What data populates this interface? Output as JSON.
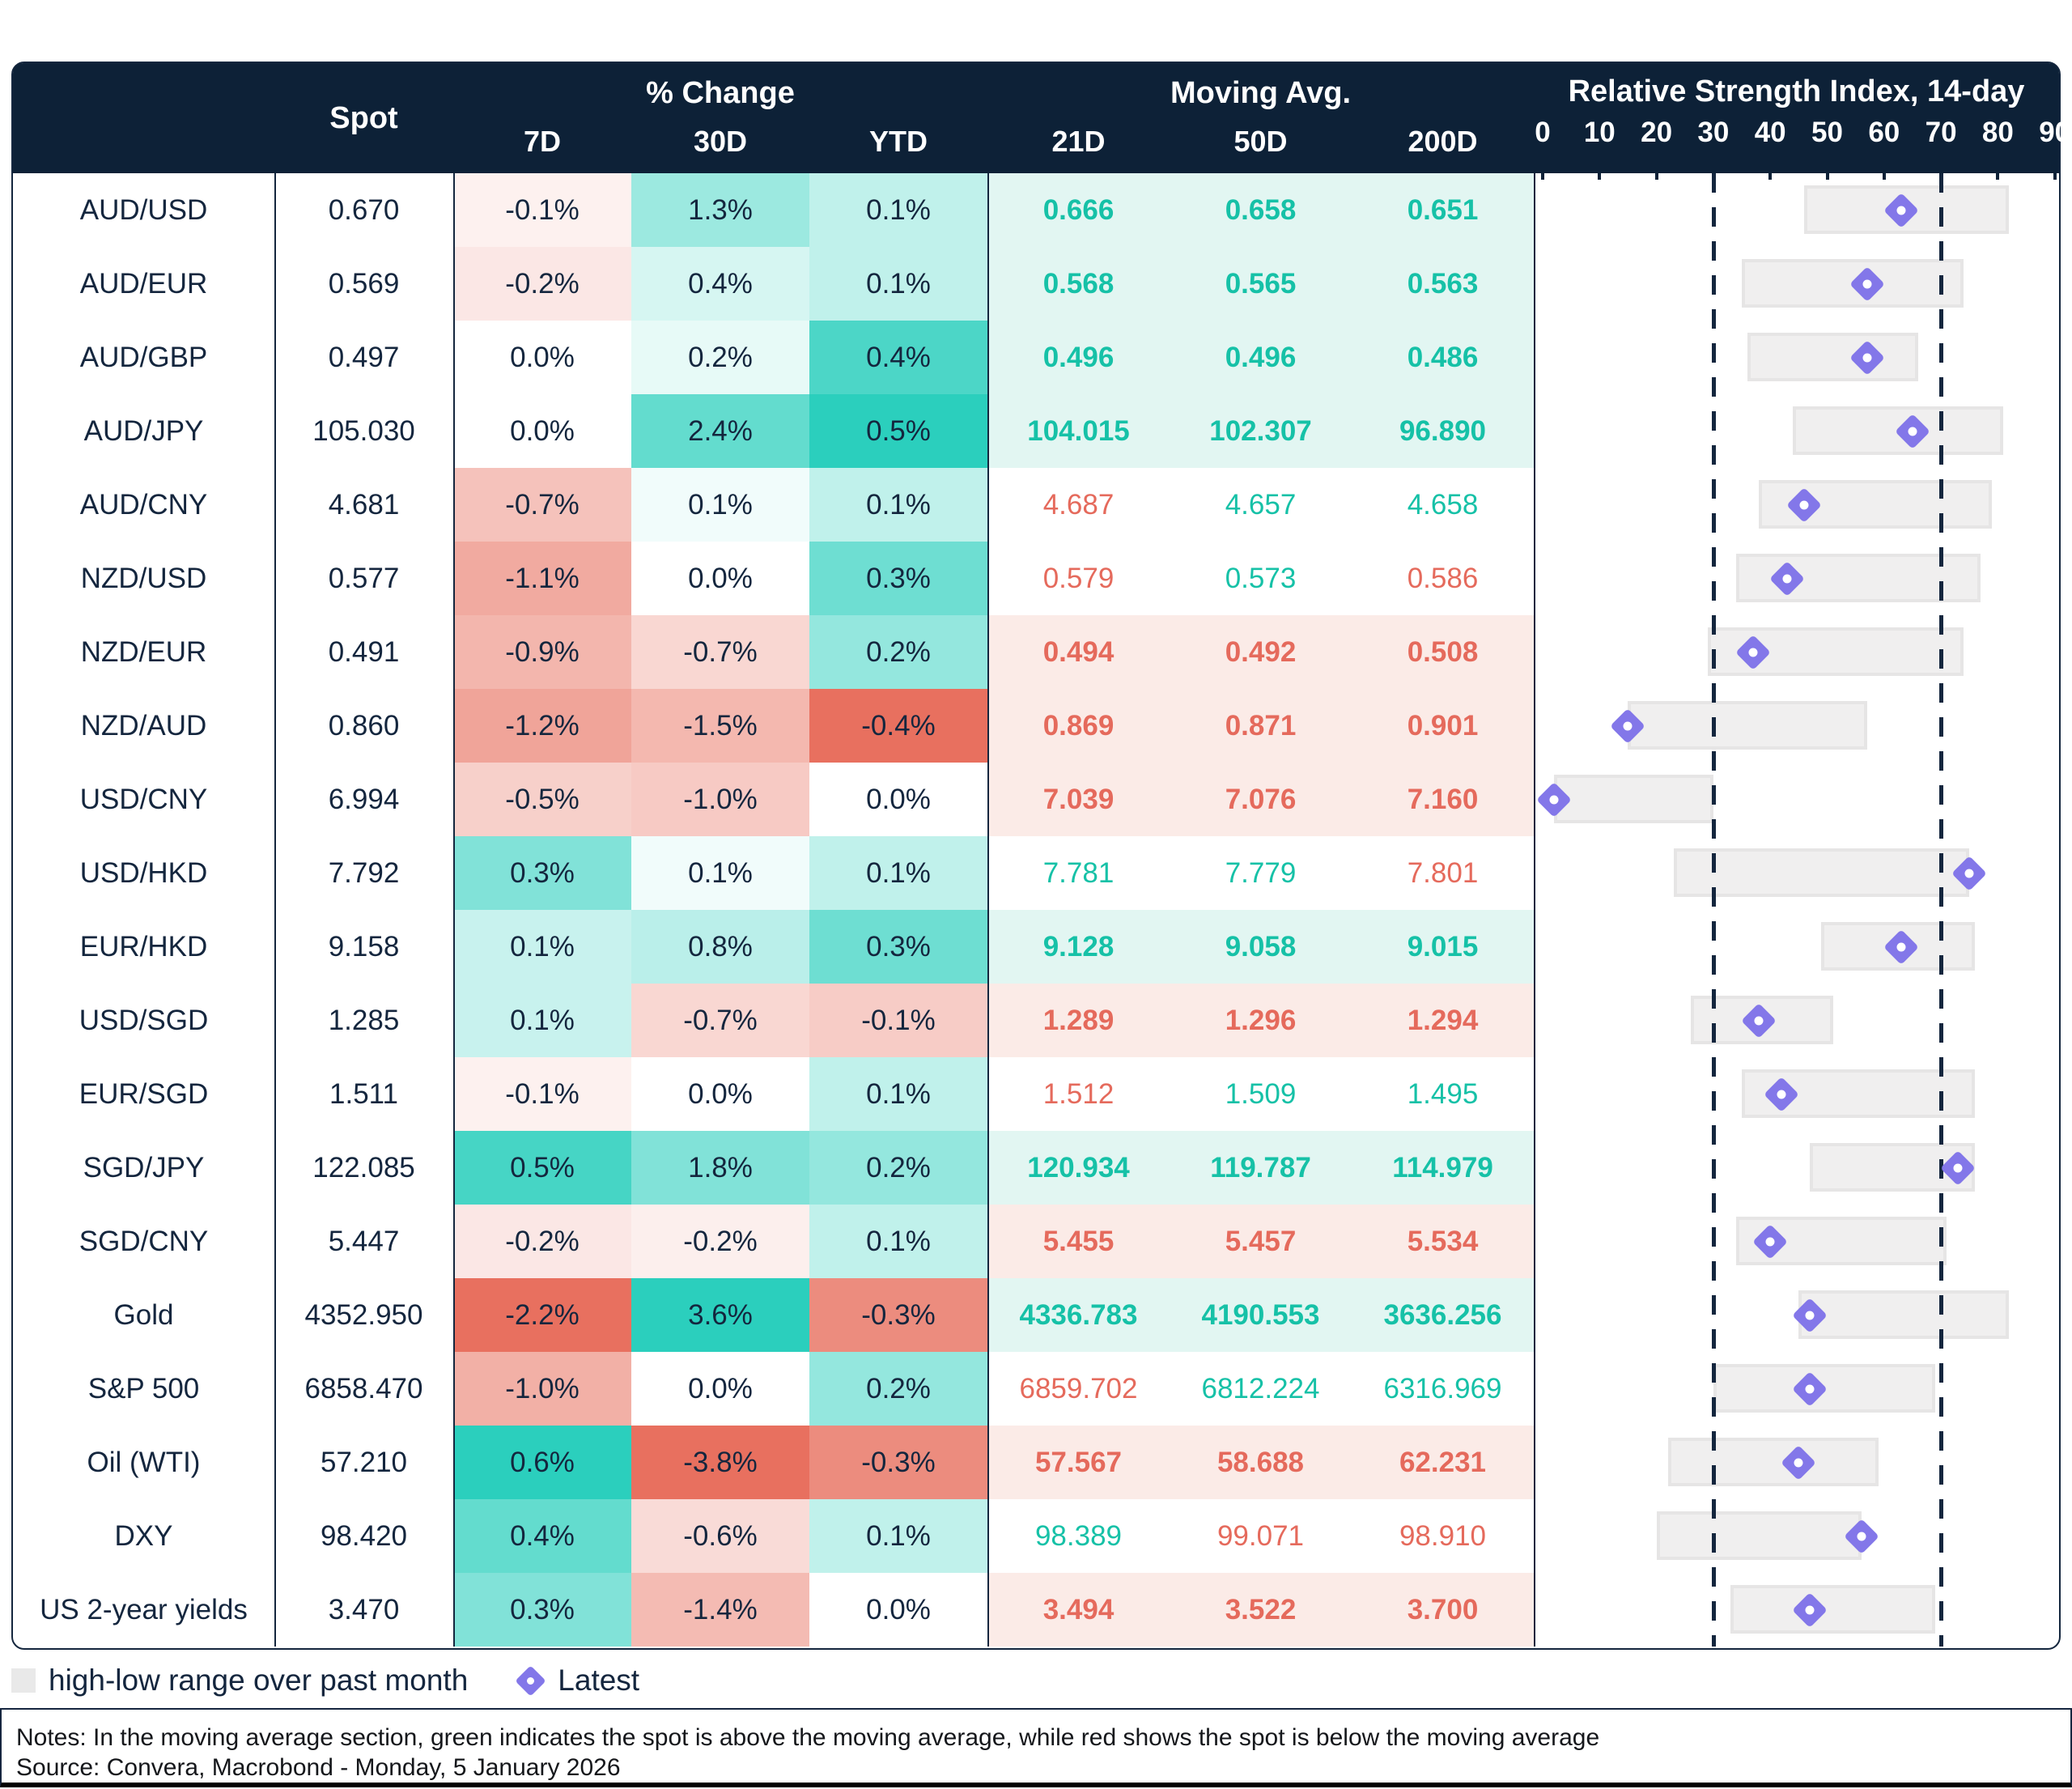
{
  "header": {
    "spot": "Spot",
    "pct_change": "% Change",
    "pct_sub": [
      "7D",
      "30D",
      "YTD"
    ],
    "moving_avg": "Moving Avg.",
    "ma_sub": [
      "21D",
      "50D",
      "200D"
    ],
    "rsi_title": "Relative Strength Index, 14-day",
    "rsi_axis": [
      0,
      10,
      20,
      30,
      40,
      50,
      60,
      70,
      80,
      90
    ]
  },
  "legend": {
    "range_label": "high-low range over past month",
    "latest_label": "Latest"
  },
  "notes": "Notes: In the moving average section, green indicates the spot is above the moving average, while red shows the spot is below the moving average",
  "source": "Source: Convera, Macrobond - Monday, 5 January 2026",
  "colors": {
    "header_bg": "#0D2137",
    "navy_text": "#14263E",
    "teal_full": "#2BCFBD",
    "red_full": "#E8705F",
    "ma_green_text": "#16C1A7",
    "ma_red_text": "#E56A5C",
    "ma_green_bg": "#E2F6F2",
    "ma_red_bg": "#FBEBE7",
    "bar_bg": "#F0EFEF",
    "bar_border": "#E6E5E5",
    "diamond_purple": "#8377E9"
  },
  "chart_data": {
    "type": "table",
    "rsi_axis_range": [
      0,
      90
    ],
    "rsi_oversold_line": 30,
    "rsi_overbought_line": 70,
    "pct_columns": [
      "7d",
      "30d",
      "ytd"
    ],
    "rows": [
      {
        "label": "AUD/USD",
        "spot": "0.670",
        "pct": {
          "7d": -0.1,
          "30d": 1.3,
          "ytd": 0.1
        },
        "ma": {
          "21d": "0.666",
          "50d": "0.658",
          "200d": "0.651",
          "status": "above",
          "cell_colors": [
            "green",
            "green",
            "green"
          ]
        },
        "rsi": {
          "low": 46,
          "high": 82,
          "latest": 63
        }
      },
      {
        "label": "AUD/EUR",
        "spot": "0.569",
        "pct": {
          "7d": -0.2,
          "30d": 0.4,
          "ytd": 0.1
        },
        "ma": {
          "21d": "0.568",
          "50d": "0.565",
          "200d": "0.563",
          "status": "above",
          "cell_colors": [
            "green",
            "green",
            "green"
          ]
        },
        "rsi": {
          "low": 35,
          "high": 74,
          "latest": 57
        }
      },
      {
        "label": "AUD/GBP",
        "spot": "0.497",
        "pct": {
          "7d": 0.0,
          "30d": 0.2,
          "ytd": 0.4
        },
        "ma": {
          "21d": "0.496",
          "50d": "0.496",
          "200d": "0.486",
          "status": "above",
          "cell_colors": [
            "green",
            "green",
            "green"
          ]
        },
        "rsi": {
          "low": 36,
          "high": 66,
          "latest": 57
        }
      },
      {
        "label": "AUD/JPY",
        "spot": "105.030",
        "pct": {
          "7d": 0.0,
          "30d": 2.4,
          "ytd": 0.5
        },
        "ma": {
          "21d": "104.015",
          "50d": "102.307",
          "200d": "96.890",
          "status": "above",
          "cell_colors": [
            "green",
            "green",
            "green"
          ]
        },
        "rsi": {
          "low": 44,
          "high": 81,
          "latest": 65
        }
      },
      {
        "label": "AUD/CNY",
        "spot": "4.681",
        "pct": {
          "7d": -0.7,
          "30d": 0.1,
          "ytd": 0.1
        },
        "ma": {
          "21d": "4.687",
          "50d": "4.657",
          "200d": "4.658",
          "status": "mixed",
          "cell_colors": [
            "red",
            "green",
            "green"
          ]
        },
        "rsi": {
          "low": 38,
          "high": 79,
          "latest": 46
        }
      },
      {
        "label": "NZD/USD",
        "spot": "0.577",
        "pct": {
          "7d": -1.1,
          "30d": 0.0,
          "ytd": 0.3
        },
        "ma": {
          "21d": "0.579",
          "50d": "0.573",
          "200d": "0.586",
          "status": "mixed",
          "cell_colors": [
            "red",
            "green",
            "red"
          ]
        },
        "rsi": {
          "low": 34,
          "high": 77,
          "latest": 43
        }
      },
      {
        "label": "NZD/EUR",
        "spot": "0.491",
        "pct": {
          "7d": -0.9,
          "30d": -0.7,
          "ytd": 0.2
        },
        "ma": {
          "21d": "0.494",
          "50d": "0.492",
          "200d": "0.508",
          "status": "below",
          "cell_colors": [
            "red",
            "red",
            "red"
          ]
        },
        "rsi": {
          "low": 29,
          "high": 74,
          "latest": 37
        }
      },
      {
        "label": "NZD/AUD",
        "spot": "0.860",
        "pct": {
          "7d": -1.2,
          "30d": -1.5,
          "ytd": -0.4
        },
        "ma": {
          "21d": "0.869",
          "50d": "0.871",
          "200d": "0.901",
          "status": "below",
          "cell_colors": [
            "red",
            "red",
            "red"
          ]
        },
        "rsi": {
          "low": 15,
          "high": 57,
          "latest": 15
        }
      },
      {
        "label": "USD/CNY",
        "spot": "6.994",
        "pct": {
          "7d": -0.5,
          "30d": -1.0,
          "ytd": 0.0
        },
        "ma": {
          "21d": "7.039",
          "50d": "7.076",
          "200d": "7.160",
          "status": "below",
          "cell_colors": [
            "red",
            "red",
            "red"
          ]
        },
        "rsi": {
          "low": 2,
          "high": 30,
          "latest": 2
        }
      },
      {
        "label": "USD/HKD",
        "spot": "7.792",
        "pct": {
          "7d": 0.3,
          "30d": 0.1,
          "ytd": 0.1
        },
        "ma": {
          "21d": "7.781",
          "50d": "7.779",
          "200d": "7.801",
          "status": "mixed",
          "cell_colors": [
            "green",
            "green",
            "red"
          ]
        },
        "rsi": {
          "low": 23,
          "high": 75,
          "latest": 75
        }
      },
      {
        "label": "EUR/HKD",
        "spot": "9.158",
        "pct": {
          "7d": 0.1,
          "30d": 0.8,
          "ytd": 0.3
        },
        "ma": {
          "21d": "9.128",
          "50d": "9.058",
          "200d": "9.015",
          "status": "above",
          "cell_colors": [
            "green",
            "green",
            "green"
          ]
        },
        "rsi": {
          "low": 49,
          "high": 76,
          "latest": 63
        }
      },
      {
        "label": "USD/SGD",
        "spot": "1.285",
        "pct": {
          "7d": 0.1,
          "30d": -0.7,
          "ytd": -0.1
        },
        "ma": {
          "21d": "1.289",
          "50d": "1.296",
          "200d": "1.294",
          "status": "below",
          "cell_colors": [
            "red",
            "red",
            "red"
          ]
        },
        "rsi": {
          "low": 26,
          "high": 51,
          "latest": 38
        }
      },
      {
        "label": "EUR/SGD",
        "spot": "1.511",
        "pct": {
          "7d": -0.1,
          "30d": 0.0,
          "ytd": 0.1
        },
        "ma": {
          "21d": "1.512",
          "50d": "1.509",
          "200d": "1.495",
          "status": "mixed",
          "cell_colors": [
            "red",
            "green",
            "green"
          ]
        },
        "rsi": {
          "low": 35,
          "high": 76,
          "latest": 42
        }
      },
      {
        "label": "SGD/JPY",
        "spot": "122.085",
        "pct": {
          "7d": 0.5,
          "30d": 1.8,
          "ytd": 0.2
        },
        "ma": {
          "21d": "120.934",
          "50d": "119.787",
          "200d": "114.979",
          "status": "above",
          "cell_colors": [
            "green",
            "green",
            "green"
          ]
        },
        "rsi": {
          "low": 47,
          "high": 76,
          "latest": 73
        }
      },
      {
        "label": "SGD/CNY",
        "spot": "5.447",
        "pct": {
          "7d": -0.2,
          "30d": -0.2,
          "ytd": 0.1
        },
        "ma": {
          "21d": "5.455",
          "50d": "5.457",
          "200d": "5.534",
          "status": "below",
          "cell_colors": [
            "red",
            "red",
            "red"
          ]
        },
        "rsi": {
          "low": 34,
          "high": 71,
          "latest": 40
        }
      },
      {
        "label": "Gold",
        "spot": "4352.950",
        "pct": {
          "7d": -2.2,
          "30d": 3.6,
          "ytd": -0.3
        },
        "ma": {
          "21d": "4336.783",
          "50d": "4190.553",
          "200d": "3636.256",
          "status": "above",
          "cell_colors": [
            "green",
            "green",
            "green"
          ]
        },
        "rsi": {
          "low": 45,
          "high": 82,
          "latest": 47
        }
      },
      {
        "label": "S&P 500",
        "spot": "6858.470",
        "pct": {
          "7d": -1.0,
          "30d": 0.0,
          "ytd": 0.2
        },
        "ma": {
          "21d": "6859.702",
          "50d": "6812.224",
          "200d": "6316.969",
          "status": "mixed",
          "cell_colors": [
            "red",
            "green",
            "green"
          ]
        },
        "rsi": {
          "low": 30,
          "high": 69,
          "latest": 47
        }
      },
      {
        "label": "Oil (WTI)",
        "spot": "57.210",
        "pct": {
          "7d": 0.6,
          "30d": -3.8,
          "ytd": -0.3
        },
        "ma": {
          "21d": "57.567",
          "50d": "58.688",
          "200d": "62.231",
          "status": "below",
          "cell_colors": [
            "red",
            "red",
            "red"
          ]
        },
        "rsi": {
          "low": 22,
          "high": 59,
          "latest": 45
        }
      },
      {
        "label": "DXY",
        "spot": "98.420",
        "pct": {
          "7d": 0.4,
          "30d": -0.6,
          "ytd": 0.1
        },
        "ma": {
          "21d": "98.389",
          "50d": "99.071",
          "200d": "98.910",
          "status": "mixed",
          "cell_colors": [
            "green",
            "red",
            "red"
          ]
        },
        "rsi": {
          "low": 20,
          "high": 56,
          "latest": 56
        }
      },
      {
        "label": "US 2-year yields",
        "spot": "3.470",
        "pct": {
          "7d": 0.3,
          "30d": -1.4,
          "ytd": 0.0
        },
        "ma": {
          "21d": "3.494",
          "50d": "3.522",
          "200d": "3.700",
          "status": "below",
          "cell_colors": [
            "red",
            "red",
            "red"
          ]
        },
        "rsi": {
          "low": 33,
          "high": 69,
          "latest": 47
        }
      }
    ]
  }
}
